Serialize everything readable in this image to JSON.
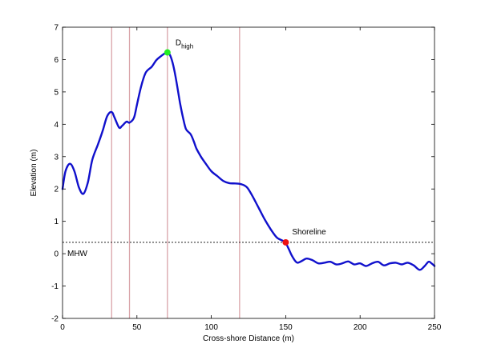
{
  "chart_data": {
    "type": "line",
    "xlabel": "Cross-shore Distance (m)",
    "ylabel": "Elevation (m)",
    "xlim": [
      0,
      250
    ],
    "ylim": [
      -2,
      7
    ],
    "xticks": [
      0,
      50,
      100,
      150,
      200,
      250
    ],
    "yticks": [
      -2,
      -1,
      0,
      1,
      2,
      3,
      4,
      5,
      6,
      7
    ],
    "grid": false,
    "profile": {
      "color": "#1010cc",
      "x": [
        0,
        2,
        5,
        8,
        11,
        14,
        17,
        20,
        24,
        27,
        30,
        33,
        35,
        38,
        40,
        43,
        45,
        48,
        50,
        53,
        56,
        60,
        63,
        66,
        69,
        71,
        73,
        75,
        77,
        79,
        81,
        83,
        86,
        88,
        90,
        93,
        96,
        100,
        104,
        108,
        112,
        116,
        120,
        124,
        128,
        132,
        136,
        140,
        144,
        148,
        150,
        152,
        154,
        156,
        158,
        161,
        164,
        168,
        172,
        176,
        180,
        184,
        188,
        192,
        196,
        200,
        204,
        208,
        212,
        216,
        220,
        224,
        228,
        232,
        236,
        240,
        243,
        246,
        248,
        250
      ],
      "y": [
        2.0,
        2.55,
        2.78,
        2.55,
        2.05,
        1.85,
        2.2,
        2.9,
        3.4,
        3.8,
        4.25,
        4.38,
        4.2,
        3.9,
        3.95,
        4.08,
        4.05,
        4.2,
        4.6,
        5.2,
        5.6,
        5.78,
        5.98,
        6.1,
        6.2,
        6.22,
        6.05,
        5.7,
        5.2,
        4.65,
        4.2,
        3.85,
        3.7,
        3.5,
        3.25,
        3.0,
        2.8,
        2.55,
        2.4,
        2.25,
        2.18,
        2.17,
        2.15,
        2.05,
        1.75,
        1.4,
        1.05,
        0.75,
        0.5,
        0.4,
        0.33,
        0.15,
        -0.05,
        -0.2,
        -0.28,
        -0.22,
        -0.15,
        -0.2,
        -0.3,
        -0.28,
        -0.25,
        -0.33,
        -0.3,
        -0.24,
        -0.33,
        -0.3,
        -0.38,
        -0.3,
        -0.25,
        -0.36,
        -0.3,
        -0.28,
        -0.33,
        -0.28,
        -0.36,
        -0.5,
        -0.4,
        -0.25,
        -0.3,
        -0.38
      ]
    },
    "vertical_lines": {
      "color": "#d9a3a8",
      "x": [
        33,
        45,
        70.5,
        119
      ]
    },
    "mhw": {
      "y": 0.35,
      "label": "MHW"
    },
    "markers": [
      {
        "x": 70.5,
        "y": 6.22,
        "color": "#22ee22",
        "label_main": "D",
        "label_sub": "high"
      },
      {
        "x": 150,
        "y": 0.35,
        "color": "#ee1111",
        "label_main": "Shoreline",
        "label_sub": ""
      }
    ]
  }
}
